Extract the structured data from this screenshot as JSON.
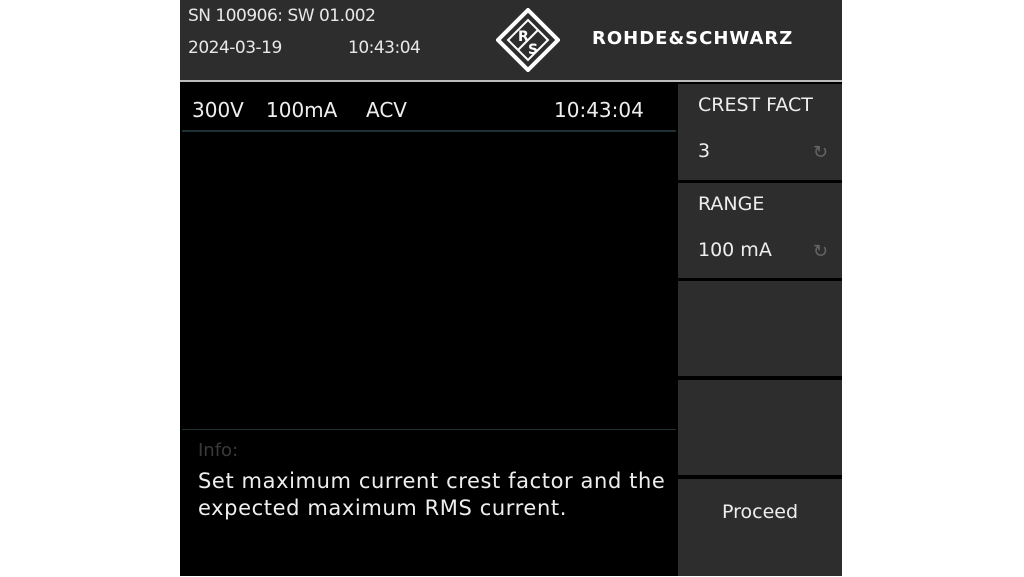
{
  "header": {
    "serial_line": "SN 100906: SW 01.002",
    "date": "2024-03-19",
    "time": "10:43:04",
    "logo_letters": "R&S",
    "brand": "ROHDE&SCHWARZ"
  },
  "status_bar": {
    "voltage": "300V",
    "current": "100mA",
    "mode": "ACV",
    "time": "10:43:04"
  },
  "info": {
    "label": "Info:",
    "text": "Set maximum current crest factor and the expected maximum RMS current."
  },
  "softkeys": [
    {
      "label": "CREST FACT",
      "value": "3",
      "icon": "rotary-knob-icon"
    },
    {
      "label": "RANGE",
      "value": "100 mA",
      "icon": "rotary-knob-icon"
    },
    {
      "label": ""
    },
    {
      "label": ""
    },
    {
      "label": "Proceed"
    }
  ],
  "colors": {
    "header_bg": "#2d2d2d",
    "softkey_bg": "#2d2d2d",
    "screen_bg": "#000000"
  }
}
